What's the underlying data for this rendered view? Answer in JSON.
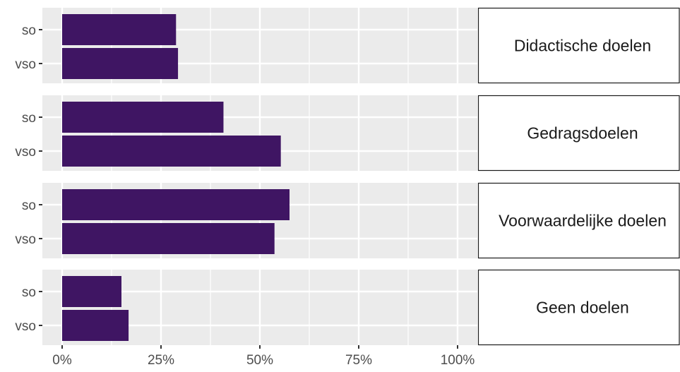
{
  "chart_data": {
    "type": "bar",
    "orientation": "horizontal",
    "facet_layout": "stacked rows, strip labels on right",
    "grid": true,
    "x_ticks": [
      "0%",
      "25%",
      "50%",
      "75%",
      "100%"
    ],
    "xlim": [
      0,
      1
    ],
    "categories": [
      "so",
      "vso"
    ],
    "facets": [
      {
        "label": "Didactische doelen",
        "values": [
          0.288,
          0.293
        ]
      },
      {
        "label": "Gedragsdoelen",
        "values": [
          0.408,
          0.553
        ]
      },
      {
        "label": "Voorwaardelijke doelen",
        "values": [
          0.575,
          0.537
        ]
      },
      {
        "label": "Geen doelen",
        "values": [
          0.15,
          0.168
        ]
      }
    ],
    "colors": {
      "bar": "#3f1563",
      "panel_bg": "#ebebeb",
      "grid": "#ffffff",
      "strip_border": "#1a1a1a",
      "tick_text": "#4d4d4d",
      "strip_text": "#1a1a1a"
    }
  }
}
